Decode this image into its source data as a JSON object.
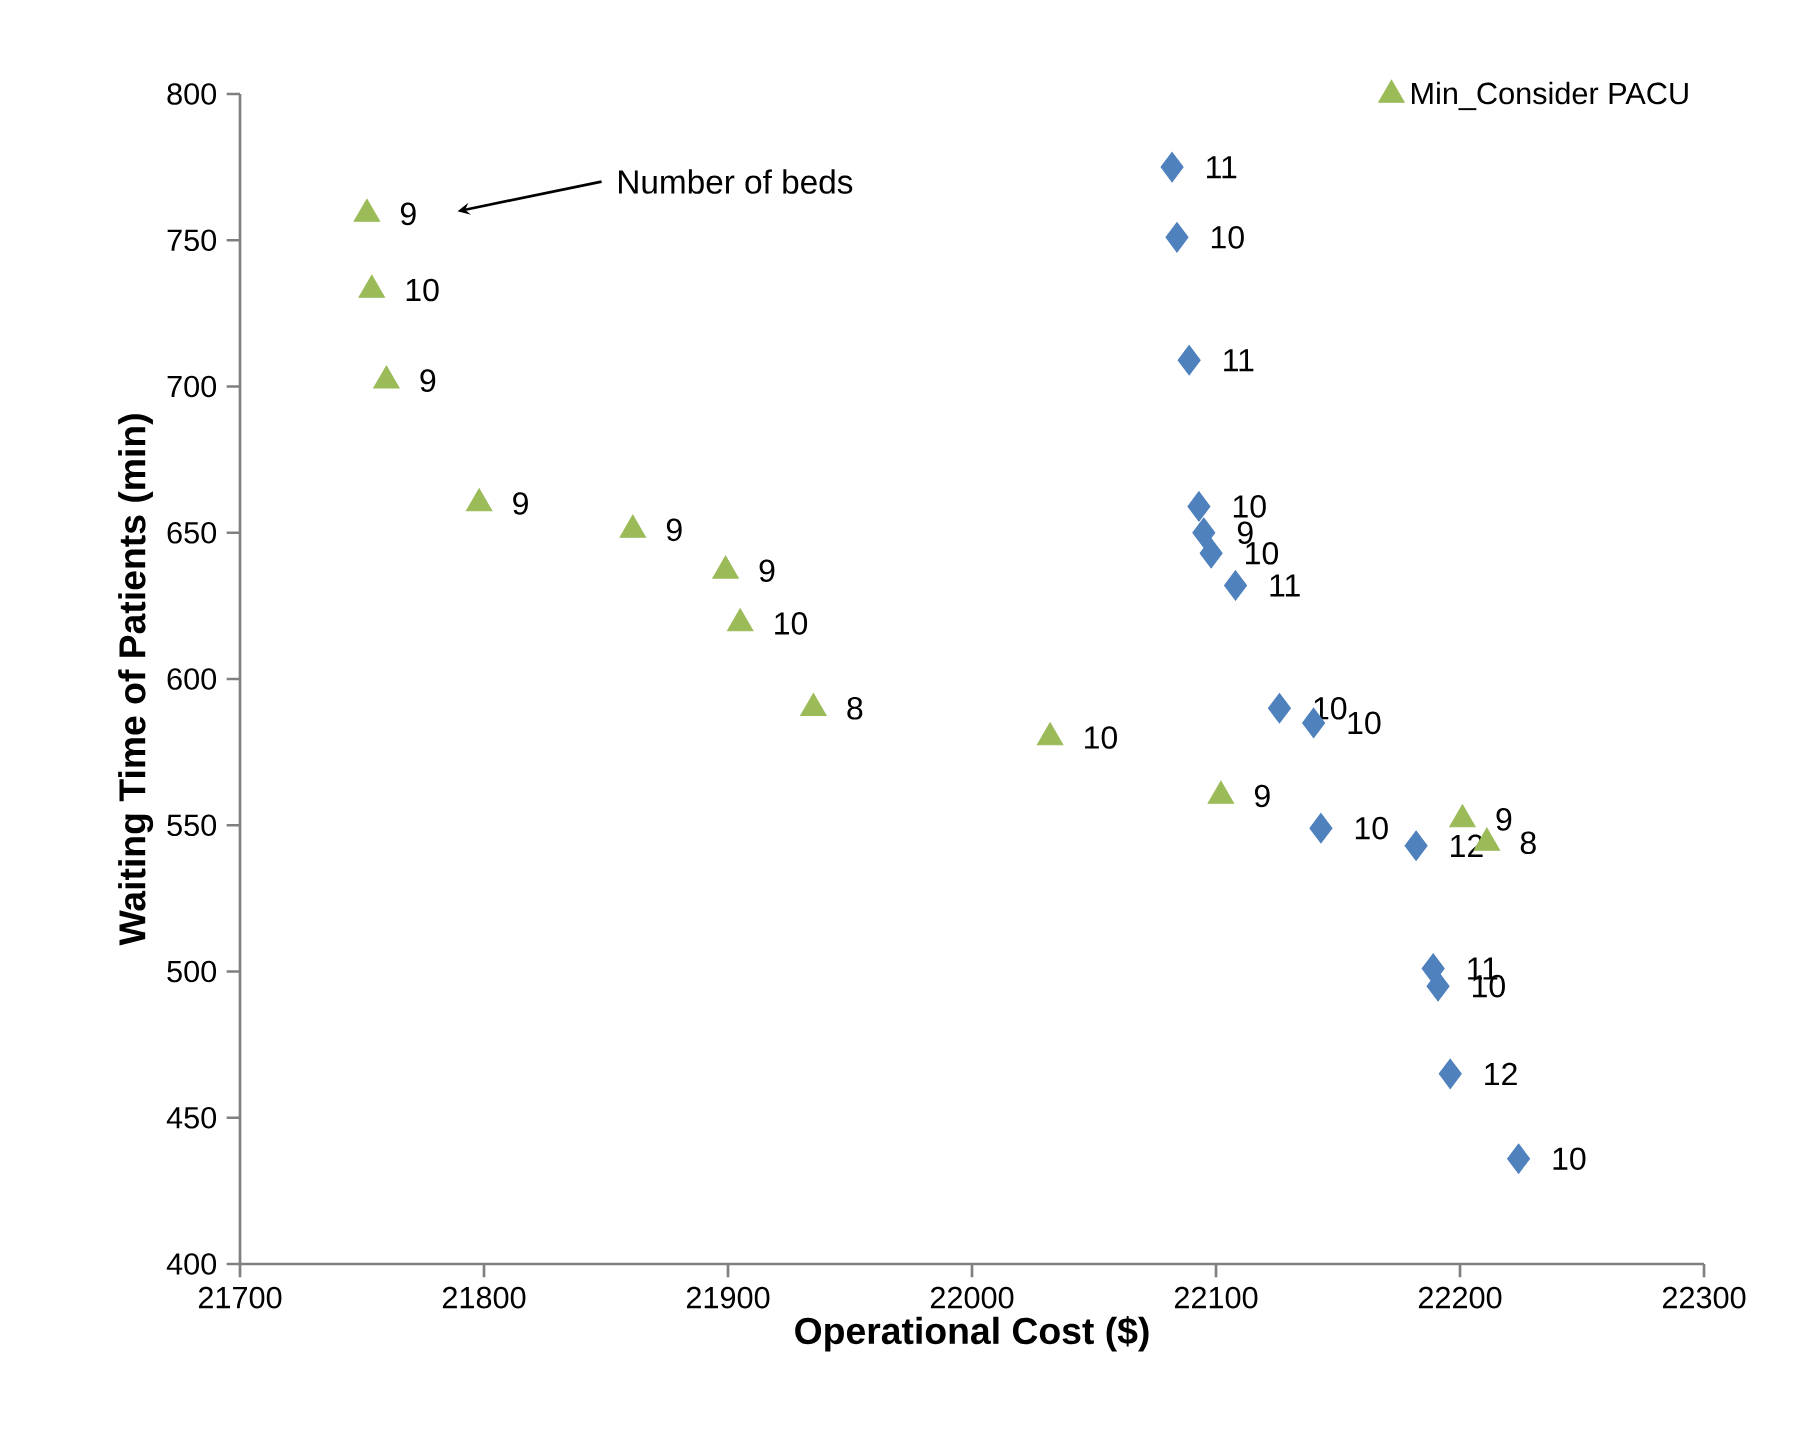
{
  "chart_data": {
    "type": "scatter",
    "xlabel": "Operational Cost ($)",
    "ylabel": "Waiting Time of Patients (min)",
    "xlim": [
      21700,
      22300
    ],
    "xticks": [
      21700,
      21800,
      21900,
      22000,
      22100,
      22200,
      22300
    ],
    "ylim": [
      400,
      800
    ],
    "yticks": [
      400,
      450,
      500,
      550,
      600,
      650,
      700,
      750,
      800
    ],
    "grid": false,
    "legend": "top right",
    "annotations": [
      "Number of beds",
      {
        "text": "11",
        "x": 22082,
        "y": 775
      },
      {
        "text": "10",
        "x": 22084,
        "y": 751
      },
      {
        "text": "11",
        "x": 22089,
        "y": 709
      },
      {
        "text": "10",
        "x": 22093,
        "y": 659
      },
      {
        "text": "9",
        "x": 22095,
        "y": 650
      },
      {
        "text": "10",
        "x": 22098,
        "y": 643
      },
      {
        "text": "11",
        "x": 22108,
        "y": 632
      },
      {
        "text": "10",
        "x": 22126,
        "y": 590
      },
      {
        "text": "10",
        "x": 22140,
        "y": 585
      },
      {
        "text": "10",
        "x": 22143,
        "y": 549
      },
      {
        "text": "12",
        "x": 22182,
        "y": 543
      },
      {
        "text": "11",
        "x": 22189,
        "y": 501
      },
      {
        "text": "10",
        "x": 22191,
        "y": 495
      },
      {
        "text": "12",
        "x": 22196,
        "y": 465
      },
      {
        "text": "10",
        "x": 22224,
        "y": 436
      },
      {
        "text": "9",
        "x": 21752,
        "y": 759
      },
      {
        "text": "10",
        "x": 21754,
        "y": 733
      },
      {
        "text": "9",
        "x": 21760,
        "y": 702
      },
      {
        "text": "9",
        "x": 21798,
        "y": 660
      },
      {
        "text": "9",
        "x": 21861,
        "y": 651
      },
      {
        "text": "9",
        "x": 21899,
        "y": 637
      },
      {
        "text": "10",
        "x": 21905,
        "y": 619
      },
      {
        "text": "8",
        "x": 21935,
        "y": 590
      },
      {
        "text": "10",
        "x": 22032,
        "y": 580
      },
      {
        "text": "9",
        "x": 22102,
        "y": 560
      },
      {
        "text": "9",
        "x": 22201,
        "y": 552
      },
      {
        "text": "8",
        "x": 22211,
        "y": 544
      }
    ],
    "series": [
      {
        "color": "#4f81bd",
        "marker": "diamond",
        "x": [
          22082,
          22084,
          22089,
          22093,
          22095,
          22098,
          22108,
          22126,
          22140,
          22143,
          22182,
          22189,
          22191,
          22196,
          22224
        ],
        "values": [
          775,
          751,
          709,
          659,
          650,
          643,
          632,
          590,
          585,
          549,
          543,
          501,
          495,
          465,
          436
        ]
      },
      {
        "name": "Min_Consider PACU",
        "color": "#9bbb59",
        "marker": "triangle",
        "x": [
          21752,
          21754,
          21760,
          21798,
          21861,
          21899,
          21905,
          21935,
          22032,
          22102,
          22201,
          22211
        ],
        "values": [
          759,
          733,
          702,
          660,
          651,
          637,
          619,
          590,
          580,
          560,
          552,
          544
        ]
      }
    ]
  }
}
